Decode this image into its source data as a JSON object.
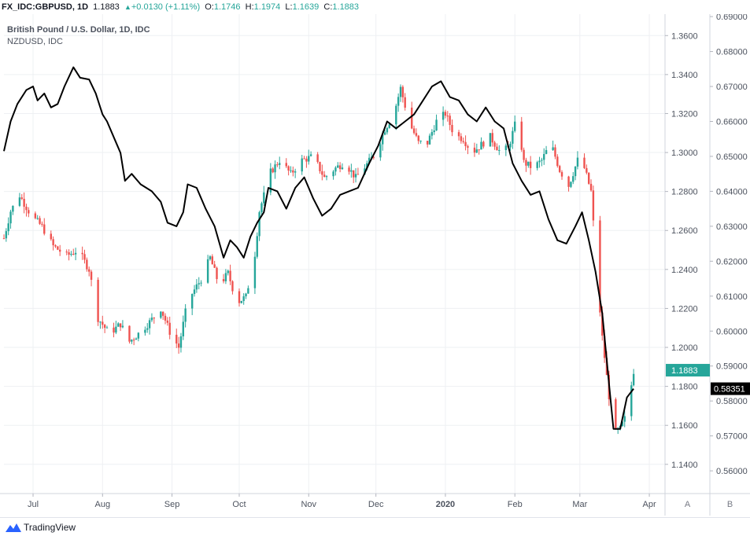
{
  "header": {
    "symbol": "FX_IDC:GBPUSD, 1D",
    "last": "1.1883",
    "change": "+0.0130 (+1.11%)",
    "open_label": "O:",
    "open": "1.1746",
    "high_label": "H:",
    "high": "1.1974",
    "low_label": "L:",
    "low": "1.1639",
    "close_label": "C:",
    "close": "1.1883"
  },
  "legend": {
    "main_series": "British Pound / U.S. Dollar, 1D, IDC",
    "compare_series": "NZDUSD, IDC"
  },
  "footer": {
    "brand": "TradingView"
  },
  "chart_data": {
    "type": "candlestick+line",
    "title": "British Pound / U.S. Dollar, 1D, IDC",
    "x_labels": [
      {
        "t": 13,
        "label": "Jul"
      },
      {
        "t": 44,
        "label": "Aug"
      },
      {
        "t": 75,
        "label": "Sep"
      },
      {
        "t": 105,
        "label": "Oct"
      },
      {
        "t": 136,
        "label": "Nov"
      },
      {
        "t": 166,
        "label": "Dec"
      },
      {
        "t": 197,
        "label": "2020"
      },
      {
        "t": 228,
        "label": "Feb"
      },
      {
        "t": 257,
        "label": "Mar"
      },
      {
        "t": 288,
        "label": "Apr"
      }
    ],
    "x_range_days": [
      0,
      295
    ],
    "left_axis": {
      "series": "British Pound / U.S. Dollar",
      "range": [
        1.125,
        1.371
      ],
      "ticks": [
        "1.3600",
        "1.3400",
        "1.3200",
        "1.3000",
        "1.2800",
        "1.2600",
        "1.2400",
        "1.2200",
        "1.2000",
        "1.1800",
        "1.1600",
        "1.1400"
      ],
      "last_value": "1.1883",
      "axis_label": "A"
    },
    "right_axis": {
      "series": "NZDUSD",
      "range": [
        0.5535,
        0.6907
      ],
      "ticks": [
        "0.69000",
        "0.68000",
        "0.67000",
        "0.66000",
        "0.65000",
        "0.64000",
        "0.63000",
        "0.62000",
        "0.61000",
        "0.60000",
        "0.59000",
        "0.58000",
        "0.57000",
        "0.56000"
      ],
      "last_value": "0.58351",
      "axis_label": "B"
    },
    "gbpusd_close_anchors": [
      [
        0,
        1.256
      ],
      [
        3,
        1.27
      ],
      [
        7,
        1.278
      ],
      [
        12,
        1.268
      ],
      [
        17,
        1.262
      ],
      [
        22,
        1.252
      ],
      [
        28,
        1.247
      ],
      [
        33,
        1.25
      ],
      [
        38,
        1.24
      ],
      [
        42,
        1.215
      ],
      [
        47,
        1.207
      ],
      [
        52,
        1.212
      ],
      [
        56,
        1.203
      ],
      [
        60,
        1.207
      ],
      [
        65,
        1.213
      ],
      [
        70,
        1.22
      ],
      [
        74,
        1.208
      ],
      [
        78,
        1.2
      ],
      [
        82,
        1.224
      ],
      [
        88,
        1.235
      ],
      [
        92,
        1.246
      ],
      [
        96,
        1.232
      ],
      [
        100,
        1.238
      ],
      [
        104,
        1.223
      ],
      [
        108,
        1.226
      ],
      [
        112,
        1.248
      ],
      [
        114,
        1.27
      ],
      [
        119,
        1.29
      ],
      [
        123,
        1.296
      ],
      [
        128,
        1.289
      ],
      [
        133,
        1.296
      ],
      [
        138,
        1.298
      ],
      [
        143,
        1.287
      ],
      [
        148,
        1.292
      ],
      [
        152,
        1.295
      ],
      [
        157,
        1.287
      ],
      [
        162,
        1.294
      ],
      [
        166,
        1.3
      ],
      [
        170,
        1.312
      ],
      [
        174,
        1.32
      ],
      [
        177,
        1.333
      ],
      [
        181,
        1.315
      ],
      [
        185,
        1.305
      ],
      [
        189,
        1.305
      ],
      [
        193,
        1.316
      ],
      [
        197,
        1.32
      ],
      [
        201,
        1.309
      ],
      [
        205,
        1.307
      ],
      [
        209,
        1.3
      ],
      [
        213,
        1.304
      ],
      [
        217,
        1.308
      ],
      [
        221,
        1.301
      ],
      [
        225,
        1.302
      ],
      [
        229,
        1.318
      ],
      [
        232,
        1.295
      ],
      [
        236,
        1.292
      ],
      [
        240,
        1.296
      ],
      [
        244,
        1.305
      ],
      [
        248,
        1.291
      ],
      [
        252,
        1.283
      ],
      [
        256,
        1.296
      ],
      [
        259,
        1.292
      ],
      [
        262,
        1.28
      ],
      [
        265,
        1.232
      ],
      [
        267,
        1.205
      ],
      [
        270,
        1.175
      ],
      [
        272,
        1.155
      ],
      [
        275,
        1.158
      ],
      [
        278,
        1.166
      ],
      [
        281,
        1.188
      ]
    ],
    "nzdusd_close_points": [
      [
        0,
        0.6515
      ],
      [
        3,
        0.66
      ],
      [
        6,
        0.665
      ],
      [
        10,
        0.669
      ],
      [
        13,
        0.67
      ],
      [
        15,
        0.666
      ],
      [
        18,
        0.668
      ],
      [
        21,
        0.664
      ],
      [
        24,
        0.665
      ],
      [
        27,
        0.67
      ],
      [
        31,
        0.6755
      ],
      [
        34,
        0.6725
      ],
      [
        38,
        0.672
      ],
      [
        41,
        0.668
      ],
      [
        44,
        0.662
      ],
      [
        46,
        0.66
      ],
      [
        50,
        0.654
      ],
      [
        52,
        0.651
      ],
      [
        54,
        0.643
      ],
      [
        57,
        0.645
      ],
      [
        61,
        0.642
      ],
      [
        66,
        0.64
      ],
      [
        70,
        0.637
      ],
      [
        73,
        0.631
      ],
      [
        77,
        0.63
      ],
      [
        80,
        0.634
      ],
      [
        82,
        0.642
      ],
      [
        86,
        0.641
      ],
      [
        90,
        0.635
      ],
      [
        94,
        0.63
      ],
      [
        98,
        0.621
      ],
      [
        101,
        0.626
      ],
      [
        104,
        0.624
      ],
      [
        107,
        0.621
      ],
      [
        110,
        0.627
      ],
      [
        113,
        0.631
      ],
      [
        116,
        0.634
      ],
      [
        118,
        0.641
      ],
      [
        122,
        0.64
      ],
      [
        126,
        0.635
      ],
      [
        130,
        0.641
      ],
      [
        134,
        0.644
      ],
      [
        138,
        0.638
      ],
      [
        142,
        0.633
      ],
      [
        146,
        0.635
      ],
      [
        150,
        0.639
      ],
      [
        154,
        0.64
      ],
      [
        158,
        0.641
      ],
      [
        163,
        0.648
      ],
      [
        167,
        0.653
      ],
      [
        171,
        0.66
      ],
      [
        175,
        0.658
      ],
      [
        179,
        0.66
      ],
      [
        183,
        0.662
      ],
      [
        187,
        0.666
      ],
      [
        191,
        0.67
      ],
      [
        195,
        0.6715
      ],
      [
        199,
        0.667
      ],
      [
        203,
        0.666
      ],
      [
        207,
        0.662
      ],
      [
        211,
        0.66
      ],
      [
        215,
        0.664
      ],
      [
        219,
        0.66
      ],
      [
        223,
        0.658
      ],
      [
        227,
        0.648
      ],
      [
        231,
        0.643
      ],
      [
        235,
        0.639
      ],
      [
        239,
        0.64
      ],
      [
        243,
        0.632
      ],
      [
        247,
        0.626
      ],
      [
        251,
        0.625
      ],
      [
        255,
        0.63
      ],
      [
        258,
        0.634
      ],
      [
        261,
        0.626
      ],
      [
        264,
        0.617
      ],
      [
        267,
        0.605
      ],
      [
        270,
        0.585
      ],
      [
        272,
        0.572
      ],
      [
        275,
        0.572
      ],
      [
        278,
        0.581
      ],
      [
        281,
        0.5835
      ]
    ],
    "grid": true
  }
}
